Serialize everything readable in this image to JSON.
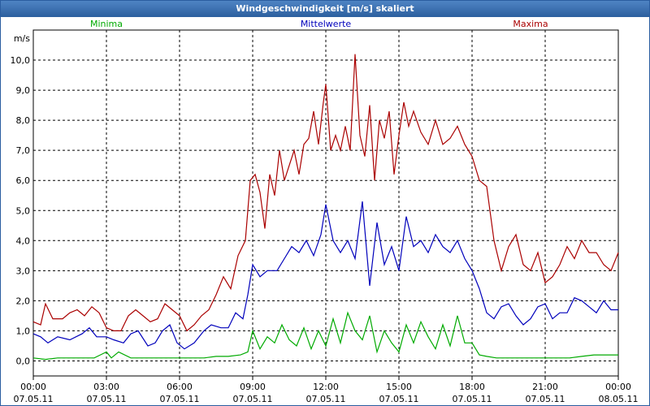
{
  "window": {
    "title": "Windgeschwindigkeit [m/s] skaliert"
  },
  "chart_data": {
    "type": "line",
    "title": "Windgeschwindigkeit [m/s] skaliert",
    "ylabel": "m/s",
    "ylim": [
      -0.5,
      11.0
    ],
    "y_ticks": [
      "0,0",
      "1,0",
      "2,0",
      "3,0",
      "4,0",
      "5,0",
      "6,0",
      "7,0",
      "8,0",
      "9,0",
      "10,0"
    ],
    "x_ticks": [
      {
        "time": "00:00",
        "date": "07.05.11"
      },
      {
        "time": "03:00",
        "date": "07.05.11"
      },
      {
        "time": "06:00",
        "date": "07.05.11"
      },
      {
        "time": "09:00",
        "date": "07.05.11"
      },
      {
        "time": "12:00",
        "date": "07.05.11"
      },
      {
        "time": "15:00",
        "date": "07.05.11"
      },
      {
        "time": "18:00",
        "date": "07.05.11"
      },
      {
        "time": "21:00",
        "date": "07.05.11"
      },
      {
        "time": "00:00",
        "date": "08.05.11"
      }
    ],
    "grid": true,
    "legend_position": "top",
    "xlim_hours": [
      0,
      24
    ],
    "series": [
      {
        "name": "Minima",
        "color": "#00aa00",
        "points": [
          [
            0,
            0.1
          ],
          [
            0.5,
            0.05
          ],
          [
            1,
            0.1
          ],
          [
            1.5,
            0.1
          ],
          [
            2,
            0.1
          ],
          [
            2.5,
            0.1
          ],
          [
            3,
            0.3
          ],
          [
            3.2,
            0.1
          ],
          [
            3.5,
            0.3
          ],
          [
            4,
            0.1
          ],
          [
            4.5,
            0.1
          ],
          [
            5,
            0.1
          ],
          [
            5.5,
            0.1
          ],
          [
            6,
            0.1
          ],
          [
            6.5,
            0.1
          ],
          [
            7,
            0.1
          ],
          [
            7.5,
            0.15
          ],
          [
            8,
            0.15
          ],
          [
            8.5,
            0.2
          ],
          [
            8.8,
            0.3
          ],
          [
            9,
            1.0
          ],
          [
            9.3,
            0.4
          ],
          [
            9.6,
            0.8
          ],
          [
            9.9,
            0.6
          ],
          [
            10.2,
            1.2
          ],
          [
            10.5,
            0.7
          ],
          [
            10.8,
            0.5
          ],
          [
            11.1,
            1.1
          ],
          [
            11.4,
            0.4
          ],
          [
            11.7,
            1.0
          ],
          [
            12,
            0.5
          ],
          [
            12.3,
            1.4
          ],
          [
            12.6,
            0.6
          ],
          [
            12.9,
            1.6
          ],
          [
            13.2,
            1.0
          ],
          [
            13.5,
            0.7
          ],
          [
            13.8,
            1.5
          ],
          [
            14.1,
            0.3
          ],
          [
            14.4,
            1.0
          ],
          [
            14.7,
            0.6
          ],
          [
            15,
            0.3
          ],
          [
            15.3,
            1.2
          ],
          [
            15.6,
            0.6
          ],
          [
            15.9,
            1.3
          ],
          [
            16.2,
            0.8
          ],
          [
            16.5,
            0.4
          ],
          [
            16.8,
            1.2
          ],
          [
            17.1,
            0.5
          ],
          [
            17.4,
            1.5
          ],
          [
            17.7,
            0.6
          ],
          [
            18,
            0.6
          ],
          [
            18.3,
            0.2
          ],
          [
            18.6,
            0.15
          ],
          [
            19,
            0.1
          ],
          [
            19.5,
            0.1
          ],
          [
            20,
            0.1
          ],
          [
            20.5,
            0.1
          ],
          [
            21,
            0.1
          ],
          [
            21.5,
            0.1
          ],
          [
            22,
            0.1
          ],
          [
            22.5,
            0.15
          ],
          [
            23,
            0.2
          ],
          [
            23.5,
            0.2
          ],
          [
            24,
            0.2
          ]
        ]
      },
      {
        "name": "Mittelwerte",
        "color": "#0000bb",
        "points": [
          [
            0,
            0.9
          ],
          [
            0.3,
            0.8
          ],
          [
            0.6,
            0.6
          ],
          [
            1,
            0.8
          ],
          [
            1.5,
            0.7
          ],
          [
            2,
            0.9
          ],
          [
            2.3,
            1.1
          ],
          [
            2.6,
            0.8
          ],
          [
            3,
            0.8
          ],
          [
            3.3,
            0.7
          ],
          [
            3.7,
            0.6
          ],
          [
            4,
            0.9
          ],
          [
            4.3,
            1.0
          ],
          [
            4.7,
            0.5
          ],
          [
            5,
            0.6
          ],
          [
            5.3,
            1.0
          ],
          [
            5.6,
            1.2
          ],
          [
            5.9,
            0.6
          ],
          [
            6.2,
            0.4
          ],
          [
            6.6,
            0.6
          ],
          [
            7,
            1.0
          ],
          [
            7.3,
            1.2
          ],
          [
            7.7,
            1.1
          ],
          [
            8,
            1.1
          ],
          [
            8.3,
            1.6
          ],
          [
            8.6,
            1.4
          ],
          [
            8.8,
            2.2
          ],
          [
            9.0,
            3.2
          ],
          [
            9.3,
            2.8
          ],
          [
            9.6,
            3.0
          ],
          [
            10,
            3.0
          ],
          [
            10.3,
            3.4
          ],
          [
            10.6,
            3.8
          ],
          [
            10.9,
            3.6
          ],
          [
            11.2,
            4.0
          ],
          [
            11.5,
            3.5
          ],
          [
            11.8,
            4.2
          ],
          [
            12,
            5.2
          ],
          [
            12.3,
            4.0
          ],
          [
            12.6,
            3.6
          ],
          [
            12.9,
            4.0
          ],
          [
            13.2,
            3.4
          ],
          [
            13.5,
            5.3
          ],
          [
            13.8,
            2.5
          ],
          [
            14.1,
            4.6
          ],
          [
            14.4,
            3.2
          ],
          [
            14.7,
            3.8
          ],
          [
            15,
            3.0
          ],
          [
            15.3,
            4.8
          ],
          [
            15.6,
            3.8
          ],
          [
            15.9,
            4.0
          ],
          [
            16.2,
            3.6
          ],
          [
            16.5,
            4.2
          ],
          [
            16.8,
            3.8
          ],
          [
            17.1,
            3.6
          ],
          [
            17.4,
            4.0
          ],
          [
            17.7,
            3.4
          ],
          [
            18,
            3.0
          ],
          [
            18.3,
            2.4
          ],
          [
            18.6,
            1.6
          ],
          [
            18.9,
            1.4
          ],
          [
            19.2,
            1.8
          ],
          [
            19.5,
            1.9
          ],
          [
            19.8,
            1.5
          ],
          [
            20.1,
            1.2
          ],
          [
            20.4,
            1.4
          ],
          [
            20.7,
            1.8
          ],
          [
            21.0,
            1.9
          ],
          [
            21.3,
            1.4
          ],
          [
            21.6,
            1.6
          ],
          [
            21.9,
            1.6
          ],
          [
            22.2,
            2.1
          ],
          [
            22.5,
            2.0
          ],
          [
            22.8,
            1.8
          ],
          [
            23.1,
            1.6
          ],
          [
            23.4,
            2.0
          ],
          [
            23.7,
            1.7
          ],
          [
            24,
            1.7
          ]
        ]
      },
      {
        "name": "Maxima",
        "color": "#aa0000",
        "points": [
          [
            0,
            1.3
          ],
          [
            0.3,
            1.2
          ],
          [
            0.5,
            1.9
          ],
          [
            0.8,
            1.4
          ],
          [
            1.2,
            1.4
          ],
          [
            1.5,
            1.6
          ],
          [
            1.8,
            1.7
          ],
          [
            2.1,
            1.5
          ],
          [
            2.4,
            1.8
          ],
          [
            2.7,
            1.6
          ],
          [
            3,
            1.1
          ],
          [
            3.3,
            1.0
          ],
          [
            3.6,
            1.0
          ],
          [
            3.9,
            1.5
          ],
          [
            4.2,
            1.7
          ],
          [
            4.5,
            1.5
          ],
          [
            4.8,
            1.3
          ],
          [
            5.1,
            1.4
          ],
          [
            5.4,
            1.9
          ],
          [
            5.7,
            1.7
          ],
          [
            6.0,
            1.5
          ],
          [
            6.3,
            1.0
          ],
          [
            6.6,
            1.2
          ],
          [
            6.9,
            1.5
          ],
          [
            7.2,
            1.7
          ],
          [
            7.5,
            2.2
          ],
          [
            7.8,
            2.8
          ],
          [
            8.1,
            2.4
          ],
          [
            8.4,
            3.5
          ],
          [
            8.7,
            4.0
          ],
          [
            8.9,
            6.0
          ],
          [
            9.1,
            6.2
          ],
          [
            9.3,
            5.6
          ],
          [
            9.5,
            4.4
          ],
          [
            9.7,
            6.2
          ],
          [
            9.9,
            5.5
          ],
          [
            10.1,
            7.0
          ],
          [
            10.3,
            6.0
          ],
          [
            10.5,
            6.5
          ],
          [
            10.7,
            7.0
          ],
          [
            10.9,
            6.2
          ],
          [
            11.1,
            7.2
          ],
          [
            11.3,
            7.4
          ],
          [
            11.5,
            8.3
          ],
          [
            11.7,
            7.2
          ],
          [
            11.9,
            8.6
          ],
          [
            12.0,
            9.2
          ],
          [
            12.2,
            7.0
          ],
          [
            12.4,
            7.5
          ],
          [
            12.6,
            7.0
          ],
          [
            12.8,
            7.8
          ],
          [
            13.0,
            7.0
          ],
          [
            13.2,
            10.2
          ],
          [
            13.4,
            7.5
          ],
          [
            13.6,
            6.8
          ],
          [
            13.8,
            8.5
          ],
          [
            14.0,
            6.0
          ],
          [
            14.2,
            8.0
          ],
          [
            14.4,
            7.4
          ],
          [
            14.6,
            8.3
          ],
          [
            14.8,
            6.2
          ],
          [
            15.0,
            7.5
          ],
          [
            15.2,
            8.6
          ],
          [
            15.4,
            7.8
          ],
          [
            15.6,
            8.3
          ],
          [
            15.9,
            7.6
          ],
          [
            16.2,
            7.2
          ],
          [
            16.5,
            8.0
          ],
          [
            16.8,
            7.2
          ],
          [
            17.1,
            7.4
          ],
          [
            17.4,
            7.8
          ],
          [
            17.7,
            7.2
          ],
          [
            18.0,
            6.8
          ],
          [
            18.3,
            6.0
          ],
          [
            18.6,
            5.8
          ],
          [
            18.9,
            4.0
          ],
          [
            19.2,
            3.0
          ],
          [
            19.5,
            3.8
          ],
          [
            19.8,
            4.2
          ],
          [
            20.1,
            3.2
          ],
          [
            20.4,
            3.0
          ],
          [
            20.7,
            3.6
          ],
          [
            21.0,
            2.6
          ],
          [
            21.3,
            2.8
          ],
          [
            21.6,
            3.2
          ],
          [
            21.9,
            3.8
          ],
          [
            22.2,
            3.4
          ],
          [
            22.5,
            4.0
          ],
          [
            22.8,
            3.6
          ],
          [
            23.1,
            3.6
          ],
          [
            23.4,
            3.2
          ],
          [
            23.7,
            3.0
          ],
          [
            24,
            3.6
          ]
        ]
      }
    ]
  }
}
